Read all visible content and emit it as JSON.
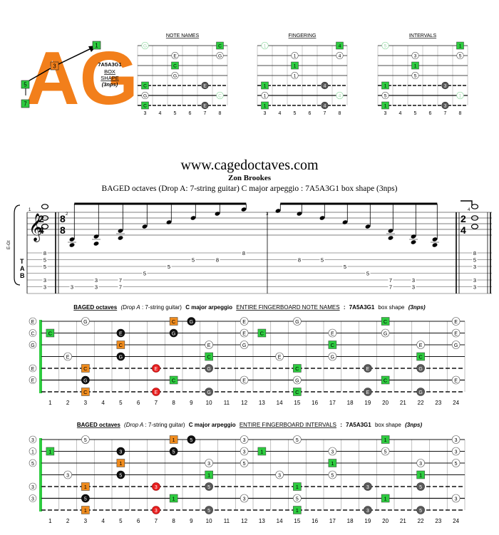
{
  "logo": {
    "text": "AG",
    "labels": [
      "1",
      "3",
      "5",
      "7"
    ]
  },
  "shape_info": {
    "code": "7A5A3G1",
    "line2": "BOX",
    "line3": "SHAPE",
    "line4": "(3nps)"
  },
  "mini": [
    {
      "title": "NOTE NAMES",
      "kind": "notes"
    },
    {
      "title": "FINGERING",
      "kind": "fingers"
    },
    {
      "title": "INTERVALS",
      "kind": "intervals"
    }
  ],
  "mini_frets": [
    "3",
    "4",
    "5",
    "6",
    "7",
    "8"
  ],
  "site": "www.cagedoctaves.com",
  "author": "Zon Brookes",
  "subtitle": "BAGED octaves (Drop A: 7-string guitar) C major arpeggio : 7A5A3G1 box shape (3nps)",
  "notation": {
    "time_start": [
      "2",
      "4"
    ],
    "time_mid": [
      "8",
      "8"
    ],
    "time_end": [
      "2",
      "4"
    ],
    "measure_numbers": [
      "1",
      "2",
      "3",
      "4"
    ],
    "tab_letters": [
      "T",
      "A",
      "B"
    ],
    "staff_label": "E-Gt",
    "tab_m1": [
      [
        "3",
        "3"
      ],
      [
        "3",
        "3"
      ],
      [
        "5",
        "3"
      ],
      [
        "8",
        "5"
      ],
      [
        "3",
        "3"
      ],
      [
        "3",
        "3"
      ],
      [
        "7",
        "7"
      ],
      [
        "5",
        "5"
      ],
      [
        "5",
        "8"
      ],
      [
        "8",
        "5"
      ],
      [
        "8",
        "8"
      ]
    ],
    "tab_m2": [
      "3",
      "7",
      "3",
      "5",
      "5",
      "8",
      "8",
      "3",
      "7",
      "3"
    ]
  },
  "board_frets": [
    "1",
    "2",
    "3",
    "4",
    "5",
    "6",
    "7",
    "8",
    "9",
    "10",
    "11",
    "12",
    "13",
    "14",
    "15",
    "16",
    "17",
    "18",
    "19",
    "20",
    "21",
    "22",
    "23",
    "24"
  ],
  "board1": {
    "title_parts": [
      "BAGED octaves",
      "(Drop A",
      ": 7-string guitar)",
      "C major arpeggio",
      "ENTIRE FINGERBOARD NOTE NAMES",
      ":",
      "7A5A3G1",
      "box shape",
      "(3nps)"
    ]
  },
  "board2": {
    "title_parts": [
      "BAGED octaves",
      "(Drop A",
      ": 7-string guitar)",
      "C major arpeggio",
      "ENTIRE FINGERBOARD INTERVALS",
      ":",
      "7A5A3G1",
      "box shape",
      "(3nps)"
    ]
  },
  "notes": {
    "root": "C",
    "third": "E",
    "fifth": "G"
  },
  "intervals": {
    "root": "1",
    "third": "3",
    "fifth": "5"
  },
  "fingers": {
    "first": "1",
    "second": "2",
    "fourth": "4"
  },
  "colors": {
    "logo": "#f27f1b",
    "green": "#2ecc40",
    "orange": "#f08c1e",
    "red": "#e82020",
    "black": "#111111",
    "grey": "#5a5a5a"
  }
}
